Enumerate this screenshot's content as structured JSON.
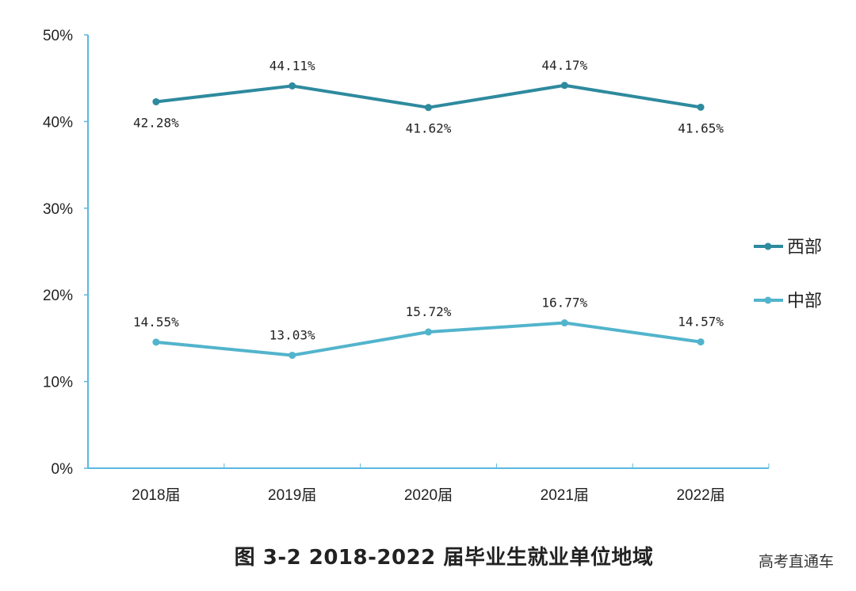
{
  "chart_data": {
    "type": "line",
    "categories": [
      "2018届",
      "2019届",
      "2020届",
      "2021届",
      "2022届"
    ],
    "series": [
      {
        "name": "西部",
        "values": [
          42.28,
          44.11,
          41.62,
          44.17,
          41.65
        ],
        "labels": [
          "42.28%",
          "44.11%",
          "41.62%",
          "44.17%",
          "41.65%"
        ],
        "color": "#2e8a9e"
      },
      {
        "name": "中部",
        "values": [
          14.55,
          13.03,
          15.72,
          16.77,
          14.57
        ],
        "labels": [
          "14.55%",
          "13.03%",
          "15.72%",
          "16.77%",
          "14.57%"
        ],
        "color": "#52b4cc"
      }
    ],
    "ylim": [
      0,
      50
    ],
    "yticks": [
      "0%",
      "10%",
      "20%",
      "30%",
      "40%",
      "50%"
    ],
    "grid": false,
    "legend": "right",
    "axis_color": "#5bb8e0",
    "title": "图 3-2   2018-2022 届毕业生就业单位地域"
  },
  "watermark": "高考直通车"
}
